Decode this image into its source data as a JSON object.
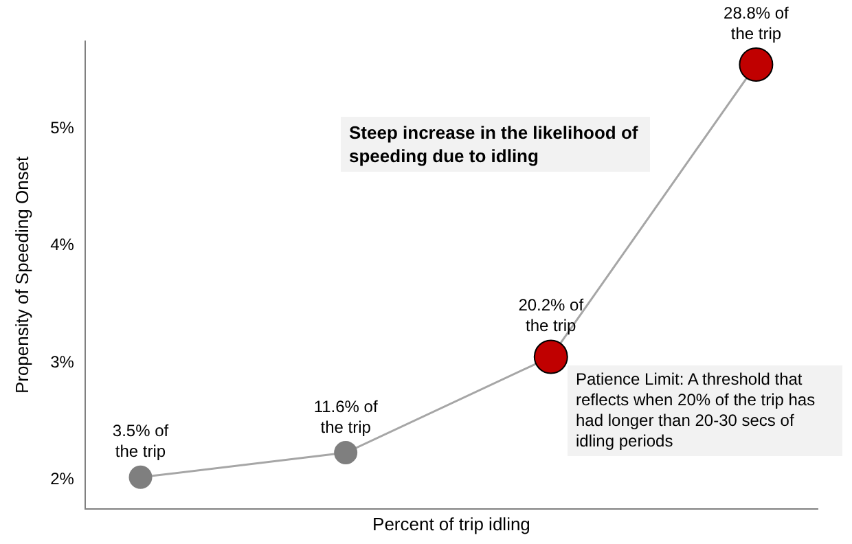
{
  "chart_data": {
    "type": "line",
    "xlabel": "Percent of trip idling",
    "ylabel": "Propensity of Speeding Onset",
    "categories": [
      null,
      null,
      null,
      null
    ],
    "values": [
      2.02,
      2.23,
      3.05,
      5.55
    ],
    "colors": [
      "#7f7f7f",
      "#7f7f7f",
      "#c00000",
      "#c00000"
    ],
    "color": "#a6a6a6",
    "ylim": [
      1.75,
      5.75
    ],
    "yticks": [
      {
        "value": 2,
        "label": "2%"
      },
      {
        "value": 3,
        "label": "3%"
      },
      {
        "value": 4,
        "label": "4%"
      },
      {
        "value": 5,
        "label": "5%"
      }
    ],
    "tick_labels": "y",
    "grid": false,
    "legend": false,
    "marker": "circle",
    "line_style": "solid",
    "annotations": [
      "3.5% of the trip",
      "11.6% of the trip",
      "20.2% of the trip",
      "28.8% of the trip",
      "Steep increase in the likelihood of speeding due to idling",
      "Patience Limit: A threshold that reflects when 20% of the trip has had longer than 20-30 secs of idling periods"
    ]
  }
}
